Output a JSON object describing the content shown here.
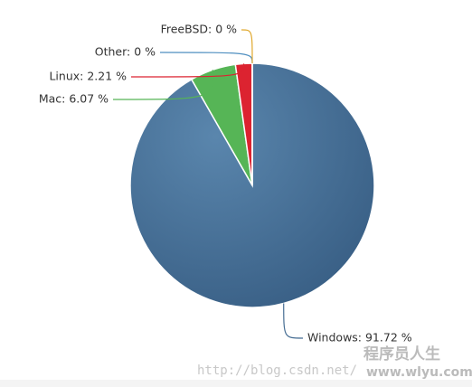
{
  "chart_data": {
    "type": "pie",
    "categories": [
      "Windows",
      "Mac",
      "Linux",
      "Other",
      "FreeBSD"
    ],
    "values": [
      91.72,
      6.07,
      2.21,
      0,
      0
    ],
    "value_labels": [
      "Windows: 91.72 %",
      "Mac: 6.07 %",
      "Linux: 2.21 %",
      "Other: 0 %",
      "FreeBSD: 0 %"
    ],
    "colors": [
      "#466d93",
      "#56b556",
      "#dc2330",
      "#4f8fc0",
      "#e0a82c"
    ]
  },
  "watermark": [
    "http://blog.csdn.net/",
    "程序员人生",
    "www.wlyu.com"
  ]
}
